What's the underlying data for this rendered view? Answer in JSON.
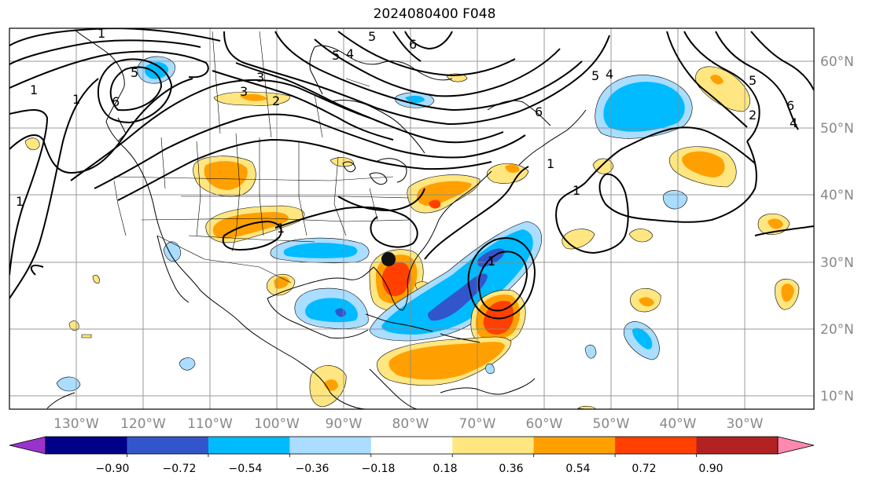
{
  "title": "2024080400 F048",
  "map": {
    "lon_labels": [
      "130°W",
      "120°W",
      "110°W",
      "100°W",
      "90°W",
      "80°W",
      "70°W",
      "60°W",
      "50°W",
      "40°W",
      "30°W"
    ],
    "lat_labels": [
      "60°N",
      "50°N",
      "40°N",
      "30°N",
      "20°N",
      "10°N"
    ],
    "grid": true,
    "marker": "storm-center-dot"
  },
  "contours": {
    "color": "#000000",
    "labels": [
      "1",
      "5",
      "6",
      "1",
      "3",
      "3",
      "2",
      "5",
      "4",
      "5",
      "6",
      "1",
      "1",
      "1",
      "1",
      "1",
      "5",
      "4",
      "6",
      "5",
      "6",
      "4",
      "2",
      "1"
    ]
  },
  "colorbar": {
    "ticks": [
      "−0.90",
      "−0.72",
      "−0.54",
      "−0.36",
      "−0.18",
      "0.18",
      "0.36",
      "0.54",
      "0.72",
      "0.90"
    ],
    "colors": [
      "#9933cc",
      "#000088",
      "#3355cc",
      "#00bbff",
      "#aaddff",
      "#ffffff",
      "#ffe680",
      "#ffa000",
      "#ff4000",
      "#b22222",
      "#ff88b0"
    ],
    "extend": "both"
  }
}
